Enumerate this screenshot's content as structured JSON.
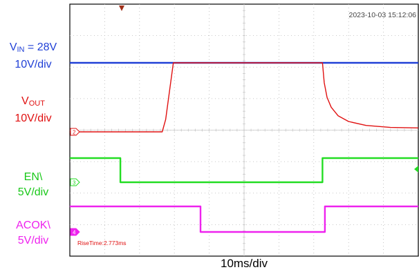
{
  "chart_data": {
    "type": "line",
    "timestamp": "2023-10-03 15:12:06",
    "rise_time": "RiseTime:2.773ms",
    "x_label": "10ms/div",
    "divisions": {
      "x": 10,
      "y": 8
    },
    "x_unit": "ms",
    "series": [
      {
        "name_main": "V",
        "name_sub": "IN",
        "name_rest": " = 28V",
        "scale": "10V/div",
        "color": "#1f3fd6",
        "marker": "",
        "points": [
          [
            0,
            28
          ],
          [
            100,
            28
          ]
        ]
      },
      {
        "name_main": "V",
        "name_sub": "OUT",
        "name_rest": "",
        "scale": "10V/div",
        "color": "#e01010",
        "marker": "2",
        "points": [
          [
            0,
            0
          ],
          [
            26.5,
            0
          ],
          [
            27.5,
            5
          ],
          [
            29.7,
            28
          ],
          [
            72.5,
            28
          ],
          [
            73.0,
            20
          ],
          [
            73.8,
            14
          ],
          [
            75,
            10
          ],
          [
            77,
            6.5
          ],
          [
            80,
            4.2
          ],
          [
            85,
            2.6
          ],
          [
            92,
            1.8
          ],
          [
            100,
            1.6
          ]
        ]
      },
      {
        "name_main": "EN\\",
        "name_sub": "",
        "name_rest": "",
        "scale": "5V/div",
        "color": "#22dd22",
        "marker": "3",
        "points": [
          [
            0,
            5
          ],
          [
            14.5,
            5
          ],
          [
            14.5,
            0
          ],
          [
            72.5,
            0
          ],
          [
            72.5,
            5
          ],
          [
            100,
            5
          ]
        ]
      },
      {
        "name_main": "ACOK\\",
        "name_sub": "",
        "name_rest": "",
        "scale": "5V/div",
        "color": "#ee22ee",
        "marker": "4",
        "points": [
          [
            0,
            5
          ],
          [
            37.5,
            5
          ],
          [
            37.5,
            0
          ],
          [
            73.2,
            0
          ],
          [
            73.2,
            5
          ],
          [
            100,
            5
          ]
        ]
      }
    ]
  }
}
